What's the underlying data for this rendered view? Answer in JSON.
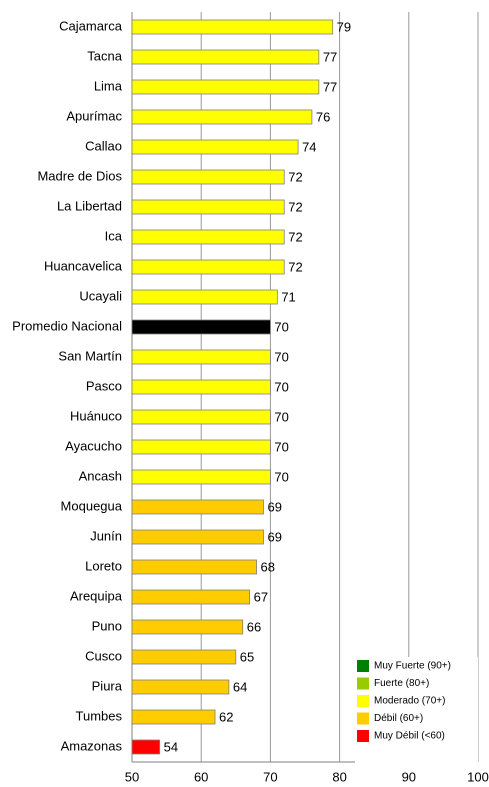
{
  "chart_data": {
    "type": "hbar",
    "categories": [
      "Cajamarca",
      "Tacna",
      "Lima",
      "Apurímac",
      "Callao",
      "Madre de Dios",
      "La Libertad",
      "Ica",
      "Huancavelica",
      "Ucayali",
      "Promedio Nacional",
      "San Martín",
      "Pasco",
      "Huánuco",
      "Ayacucho",
      "Ancash",
      "Moquegua",
      "Junín",
      "Loreto",
      "Arequipa",
      "Puno",
      "Cusco",
      "Piura",
      "Tumbes",
      "Amazonas"
    ],
    "values": [
      79,
      77,
      77,
      76,
      74,
      72,
      72,
      72,
      72,
      71,
      70,
      70,
      70,
      70,
      70,
      70,
      69,
      69,
      68,
      67,
      66,
      65,
      64,
      62,
      54
    ],
    "colors": [
      "#ffff00",
      "#ffff00",
      "#ffff00",
      "#ffff00",
      "#ffff00",
      "#ffff00",
      "#ffff00",
      "#ffff00",
      "#ffff00",
      "#ffff00",
      "#000000",
      "#ffff00",
      "#ffff00",
      "#ffff00",
      "#ffff00",
      "#ffff00",
      "#ffcc00",
      "#ffcc00",
      "#ffcc00",
      "#ffcc00",
      "#ffcc00",
      "#ffcc00",
      "#ffcc00",
      "#ffcc00",
      "#ff0000"
    ],
    "xlim": [
      50,
      100
    ],
    "xticks": [
      50,
      60,
      70,
      80,
      90,
      100
    ],
    "grid": true,
    "legend": [
      {
        "name": "Muy Fuerte (90+)",
        "color": "#008000"
      },
      {
        "name": "Fuerte (80+)",
        "color": "#99cc00"
      },
      {
        "name": "Moderado (70+)",
        "color": "#ffff00"
      },
      {
        "name": "Débil (60+)",
        "color": "#ffcc00"
      },
      {
        "name": "Muy Débil (<60)",
        "color": "#ff0000"
      }
    ],
    "legend_position": "lower right"
  }
}
